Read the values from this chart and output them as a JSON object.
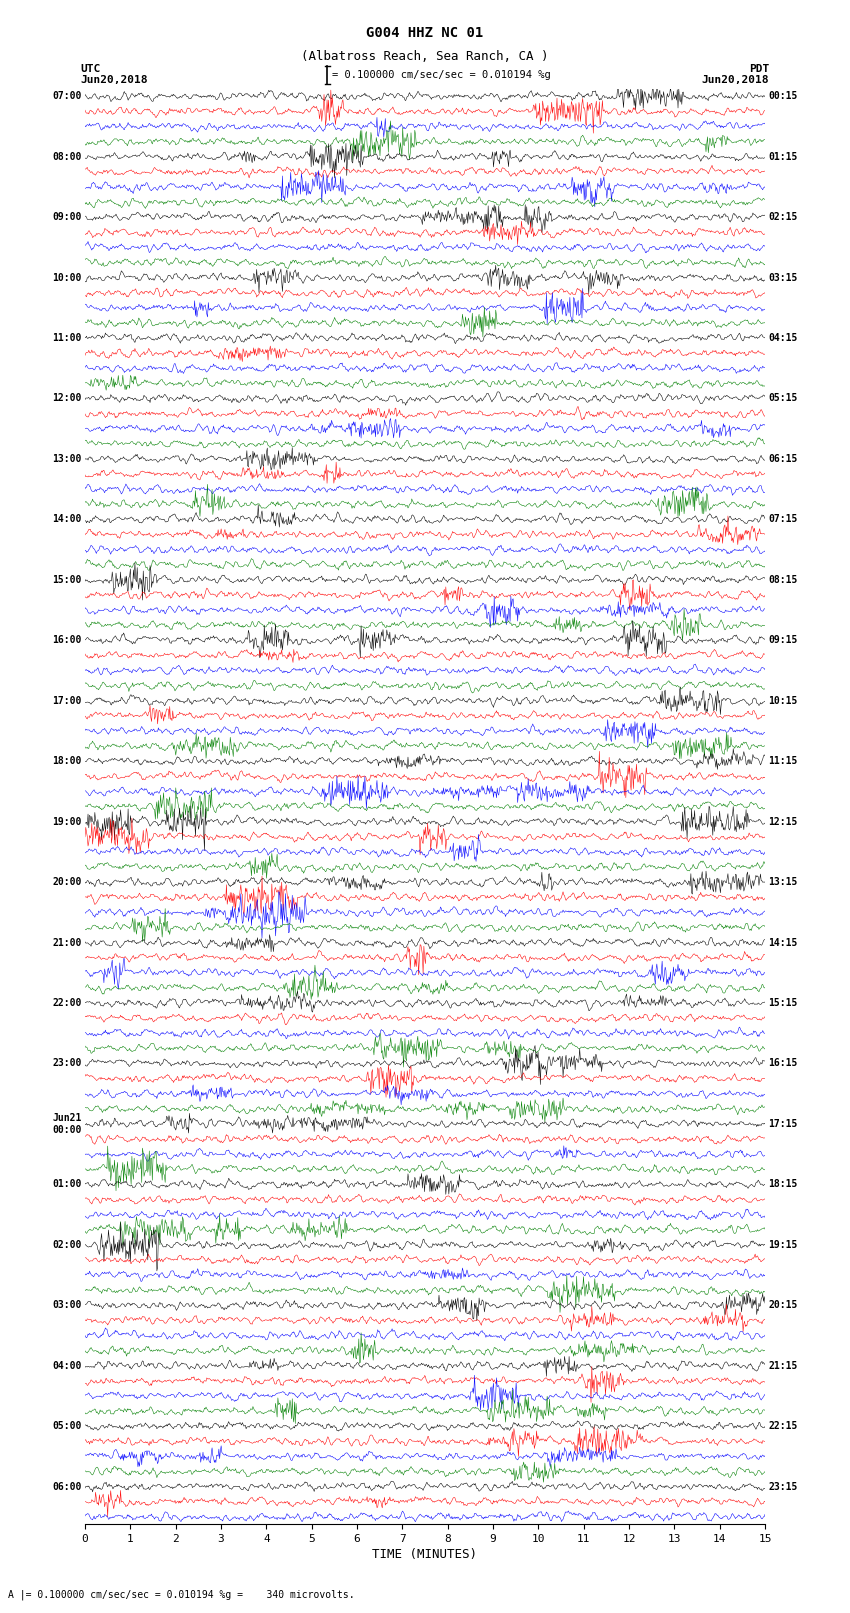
{
  "title_line1": "G004 HHZ NC 01",
  "title_line2": "(Albatross Reach, Sea Ranch, CA )",
  "scale_label": "= 0.100000 cm/sec/sec = 0.010194 %g",
  "bottom_label": "A |= 0.100000 cm/sec/sec = 0.010194 %g =    340 microvolts.",
  "xlabel": "TIME (MINUTES)",
  "left_times_utc": [
    "07:00",
    "",
    "",
    "",
    "08:00",
    "",
    "",
    "",
    "09:00",
    "",
    "",
    "",
    "10:00",
    "",
    "",
    "",
    "11:00",
    "",
    "",
    "",
    "12:00",
    "",
    "",
    "",
    "13:00",
    "",
    "",
    "",
    "14:00",
    "",
    "",
    "",
    "15:00",
    "",
    "",
    "",
    "16:00",
    "",
    "",
    "",
    "17:00",
    "",
    "",
    "",
    "18:00",
    "",
    "",
    "",
    "19:00",
    "",
    "",
    "",
    "20:00",
    "",
    "",
    "",
    "21:00",
    "",
    "",
    "",
    "22:00",
    "",
    "",
    "",
    "23:00",
    "",
    "",
    "",
    "Jun21\n00:00",
    "",
    "",
    "",
    "01:00",
    "",
    "",
    "",
    "02:00",
    "",
    "",
    "",
    "03:00",
    "",
    "",
    "",
    "04:00",
    "",
    "",
    "",
    "05:00",
    "",
    "",
    "",
    "06:00",
    "",
    ""
  ],
  "right_times_pdt": [
    "00:15",
    "",
    "",
    "",
    "01:15",
    "",
    "",
    "",
    "02:15",
    "",
    "",
    "",
    "03:15",
    "",
    "",
    "",
    "04:15",
    "",
    "",
    "",
    "05:15",
    "",
    "",
    "",
    "06:15",
    "",
    "",
    "",
    "07:15",
    "",
    "",
    "",
    "08:15",
    "",
    "",
    "",
    "09:15",
    "",
    "",
    "",
    "10:15",
    "",
    "",
    "",
    "11:15",
    "",
    "",
    "",
    "12:15",
    "",
    "",
    "",
    "13:15",
    "",
    "",
    "",
    "14:15",
    "",
    "",
    "",
    "15:15",
    "",
    "",
    "",
    "16:15",
    "",
    "",
    "",
    "17:15",
    "",
    "",
    "",
    "18:15",
    "",
    "",
    "",
    "19:15",
    "",
    "",
    "",
    "20:15",
    "",
    "",
    "",
    "21:15",
    "",
    "",
    "",
    "22:15",
    "",
    "",
    "",
    "23:15",
    "",
    ""
  ],
  "trace_colors": [
    "black",
    "red",
    "blue",
    "green"
  ],
  "num_rows": 95,
  "x_min": 0,
  "x_max": 15,
  "x_ticks": [
    0,
    1,
    2,
    3,
    4,
    5,
    6,
    7,
    8,
    9,
    10,
    11,
    12,
    13,
    14,
    15
  ],
  "noise_scale": 0.28,
  "background_color": "white",
  "fig_width": 8.5,
  "fig_height": 16.13,
  "dpi": 100
}
